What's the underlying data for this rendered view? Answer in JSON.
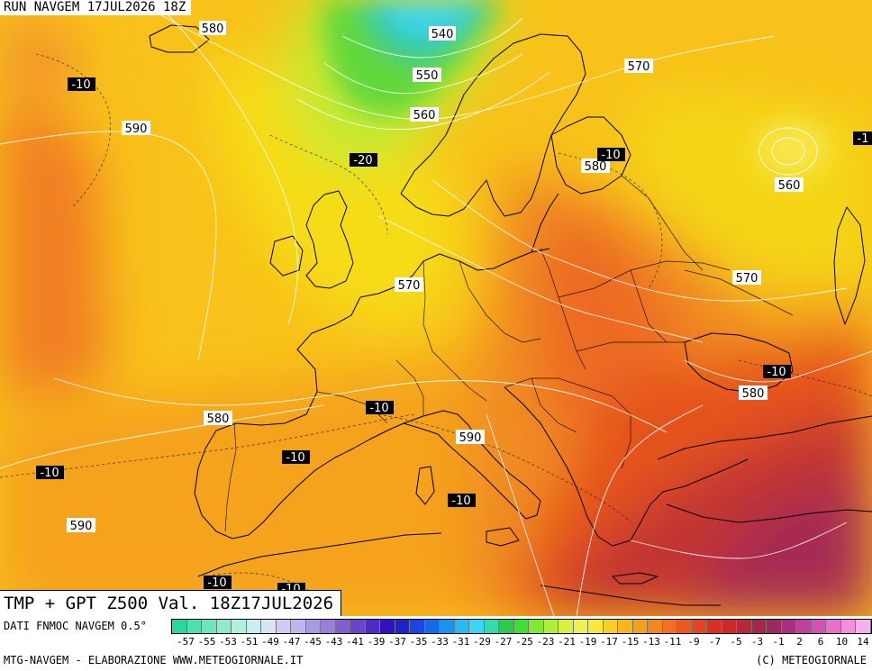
{
  "header": {
    "run_label": "RUN NAVGEM 17JUL2026 18Z"
  },
  "caption": {
    "title": "TMP + GPT Z500 Val. 18Z17JUL2026"
  },
  "legend": {
    "source_label": "DATI FNMOC NAVGEM 0.5°",
    "tick_labels": [
      "-57",
      "-55",
      "-53",
      "-51",
      "-49",
      "-47",
      "-45",
      "-43",
      "-41",
      "-39",
      "-37",
      "-35",
      "-33",
      "-31",
      "-29",
      "-27",
      "-25",
      "-23",
      "-21",
      "-19",
      "-17",
      "-15",
      "-13",
      "-11",
      "-9",
      "-7",
      "-5",
      "-3",
      "-1",
      "2",
      "6",
      "10",
      "14"
    ],
    "colors": [
      "#2ad6a0",
      "#50ddb0",
      "#70e4c0",
      "#90ead0",
      "#b0f0e0",
      "#c8eef0",
      "#d8e4f4",
      "#d0ccf0",
      "#c0b4ea",
      "#aa9be0",
      "#9680d8",
      "#8060d0",
      "#6a45c8",
      "#4f2ac0",
      "#3012c0",
      "#1f20d0",
      "#1a44e6",
      "#166ae8",
      "#1c92f0",
      "#28b8f4",
      "#3cd6f4",
      "#38d8b0",
      "#2cc850",
      "#3ee030",
      "#80ea30",
      "#b0ee3a",
      "#d8f040",
      "#eef050",
      "#f8e838",
      "#f8d020",
      "#f6b818",
      "#f4a018",
      "#f08820",
      "#ee7020",
      "#ea5a20",
      "#e44422",
      "#d83024",
      "#c82a2c",
      "#b4283a",
      "#a42648",
      "#9a2a60",
      "#a83080",
      "#c040a0",
      "#d452b8",
      "#e470cc",
      "#f090dc",
      "#f4b0e8"
    ]
  },
  "footer": {
    "left": "MTG-NAVGEM - ELABORAZIONE WWW.METEOGIORNALE.IT",
    "right": "(C) METEOGIORNALE"
  },
  "map": {
    "gpt_labels": [
      "580",
      "540",
      "550",
      "560",
      "570",
      "590",
      "580",
      "560",
      "570",
      "570",
      "590",
      "580",
      "580",
      "590"
    ],
    "tmp_labels": [
      "-10",
      "-20",
      "-10",
      "-1",
      "-10",
      "-10",
      "-10",
      "-10",
      "-10",
      "-10",
      "-10",
      "-10"
    ],
    "colors": {
      "field_yellow": "#f6dc10",
      "field_orange": "#f6a020",
      "field_red": "#e8541e",
      "field_deep": "#a82a50",
      "field_green": "#48d040",
      "field_cyan": "#38d0e8",
      "coast": "#000000",
      "isoline": "#ffffff"
    }
  }
}
